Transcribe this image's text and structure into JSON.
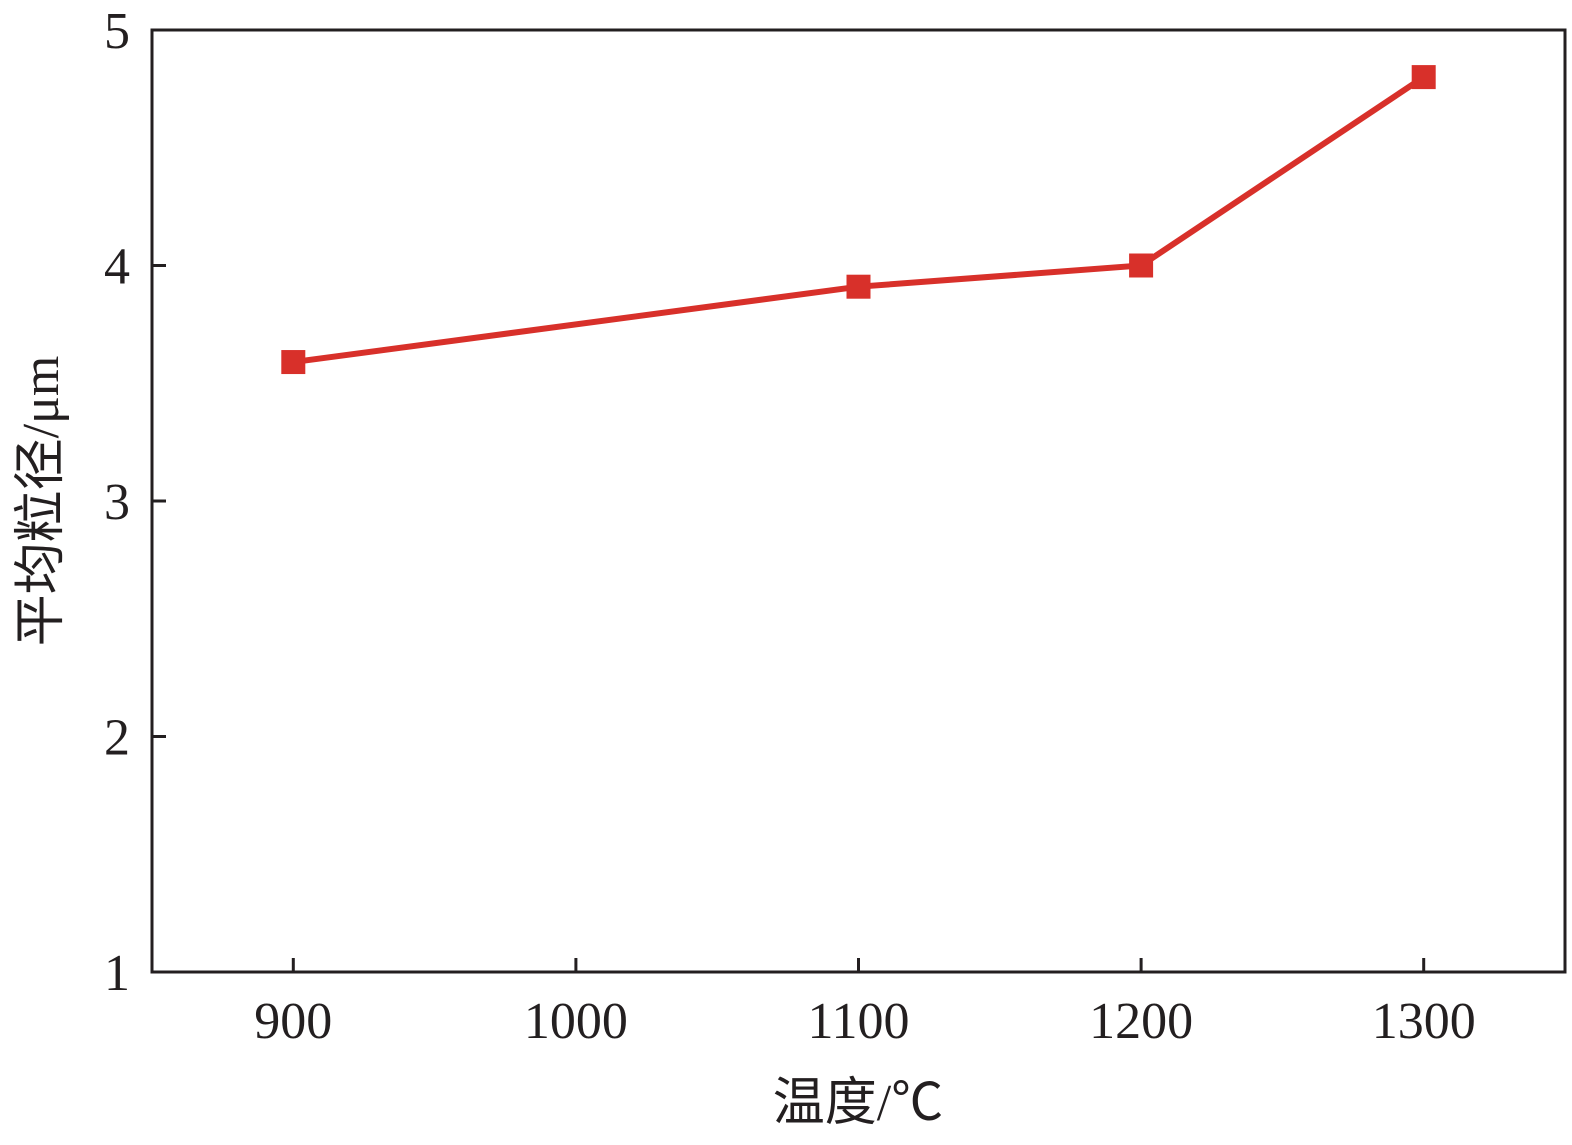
{
  "chart_data": {
    "type": "line",
    "x_label": "温度/℃",
    "y_label": "平均粒径/μm",
    "x": [
      900,
      1100,
      1200,
      1300
    ],
    "series": [
      {
        "color": "#d8302a",
        "values": [
          3.59,
          3.91,
          4.0,
          4.8
        ]
      }
    ],
    "xlim": [
      850,
      1350
    ],
    "xticks": [
      900,
      1000,
      1100,
      1200,
      1300
    ],
    "ylim": [
      1,
      5
    ],
    "yticks": [
      1,
      2,
      3,
      4,
      5
    ]
  }
}
